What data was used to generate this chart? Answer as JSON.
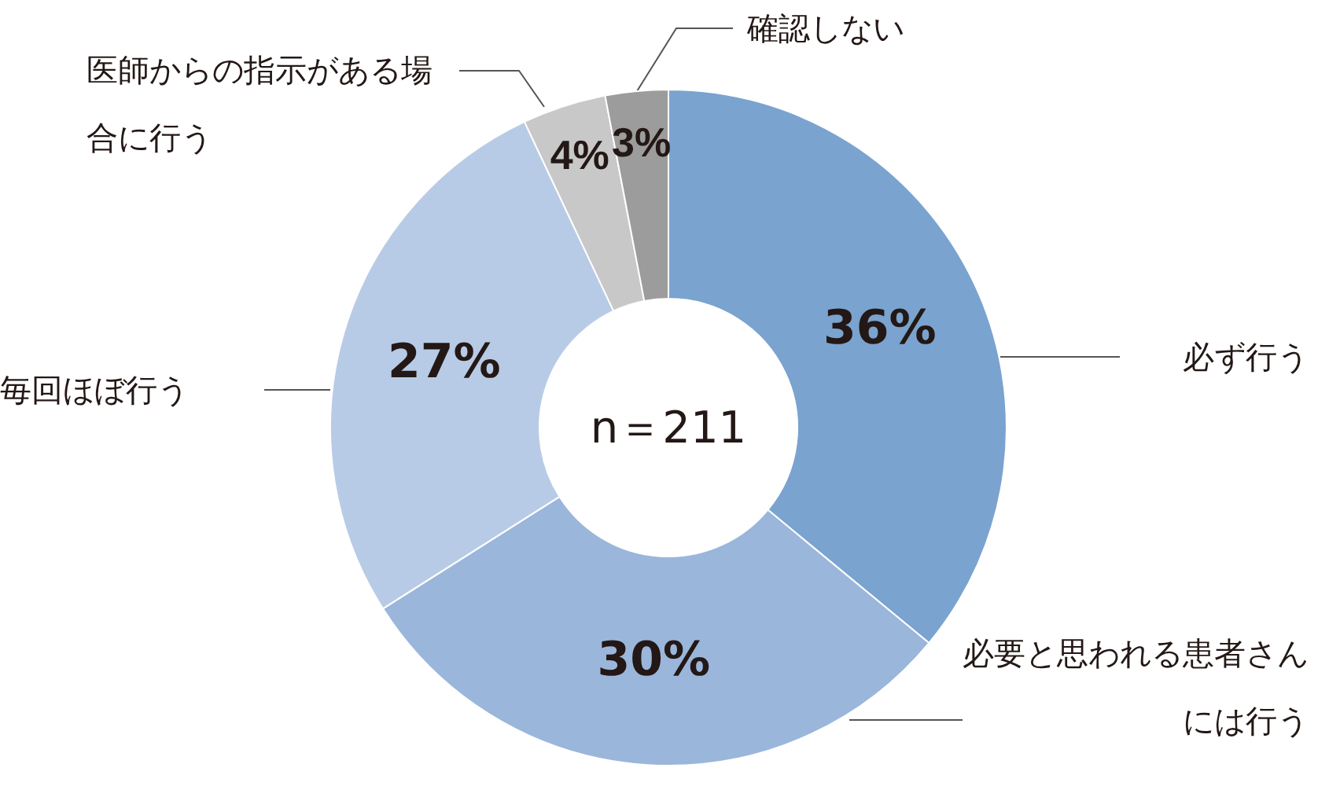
{
  "chart_data": {
    "type": "donut",
    "categories": [
      "必ず行う",
      "必要と思われる患者さんには行う",
      "毎回ほぼ行う",
      "医師からの指示がある場合に行う",
      "確認しない"
    ],
    "values": [
      36,
      30,
      27,
      4,
      3
    ],
    "colors": [
      "#7aa3cf",
      "#9bb6db",
      "#b8cbe6",
      "#c8c8c8",
      "#9c9c9c"
    ],
    "value_labels": [
      "36%",
      "30%",
      "27%",
      "4%",
      "3%"
    ],
    "annotations": [
      "n＝211"
    ],
    "legend": false
  }
}
